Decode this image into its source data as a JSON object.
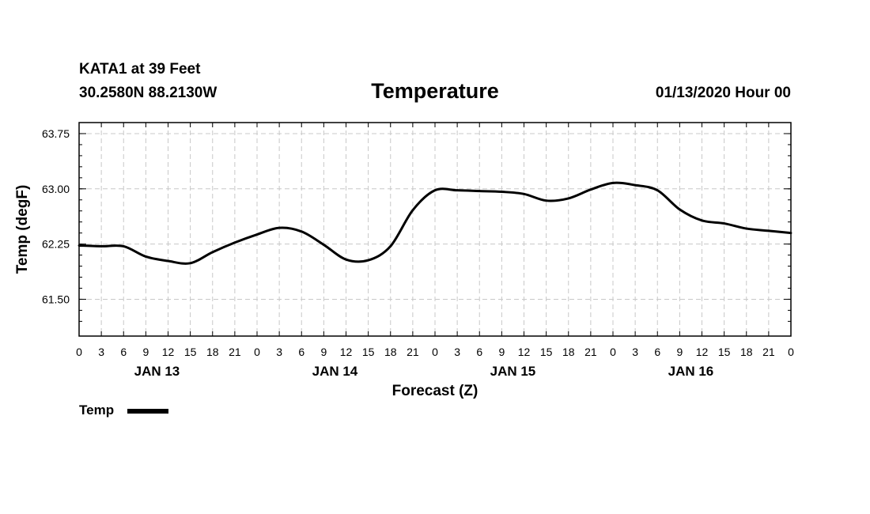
{
  "header": {
    "station": "KATA1 at 39 Feet",
    "coords": "30.2580N 88.2130W",
    "title": "Temperature",
    "datetime": "01/13/2020 Hour 00"
  },
  "legend": {
    "label": "Temp",
    "color": "#000000"
  },
  "chart_data": {
    "type": "line",
    "title": "Temperature",
    "xlabel": "Forecast (Z)",
    "ylabel": "Temp (degF)",
    "ylim": [
      61.0,
      63.9
    ],
    "yticks": [
      61.5,
      62.25,
      63.0,
      63.75
    ],
    "ytick_labels": [
      "61.50",
      "62.25",
      "63.00",
      "63.75"
    ],
    "xlim": [
      0,
      96
    ],
    "xtick_labels": [
      "0",
      "3",
      "6",
      "9",
      "12",
      "15",
      "18",
      "21",
      "0",
      "3",
      "6",
      "9",
      "12",
      "15",
      "18",
      "21",
      "0",
      "3",
      "6",
      "9",
      "12",
      "15",
      "18",
      "21",
      "0",
      "3",
      "6",
      "9",
      "12",
      "15",
      "18",
      "21",
      "0"
    ],
    "day_labels": [
      "JAN 13",
      "JAN 14",
      "JAN 15",
      "JAN 16"
    ],
    "grid": true,
    "series": [
      {
        "name": "Temp",
        "color": "#000000",
        "x": [
          0,
          3,
          6,
          9,
          12,
          15,
          18,
          21,
          24,
          27,
          30,
          33,
          36,
          39,
          42,
          45,
          48,
          51,
          54,
          57,
          60,
          63,
          66,
          69,
          72,
          75,
          78,
          81,
          84,
          87,
          90,
          93,
          96
        ],
        "values": [
          62.23,
          62.22,
          62.22,
          62.08,
          62.02,
          61.99,
          62.14,
          62.27,
          62.38,
          62.47,
          62.42,
          62.24,
          62.04,
          62.03,
          62.22,
          62.71,
          62.98,
          62.98,
          62.97,
          62.96,
          62.93,
          62.84,
          62.87,
          62.99,
          63.08,
          63.05,
          62.98,
          62.72,
          62.57,
          62.53,
          62.46,
          62.43,
          62.4
        ]
      }
    ]
  }
}
